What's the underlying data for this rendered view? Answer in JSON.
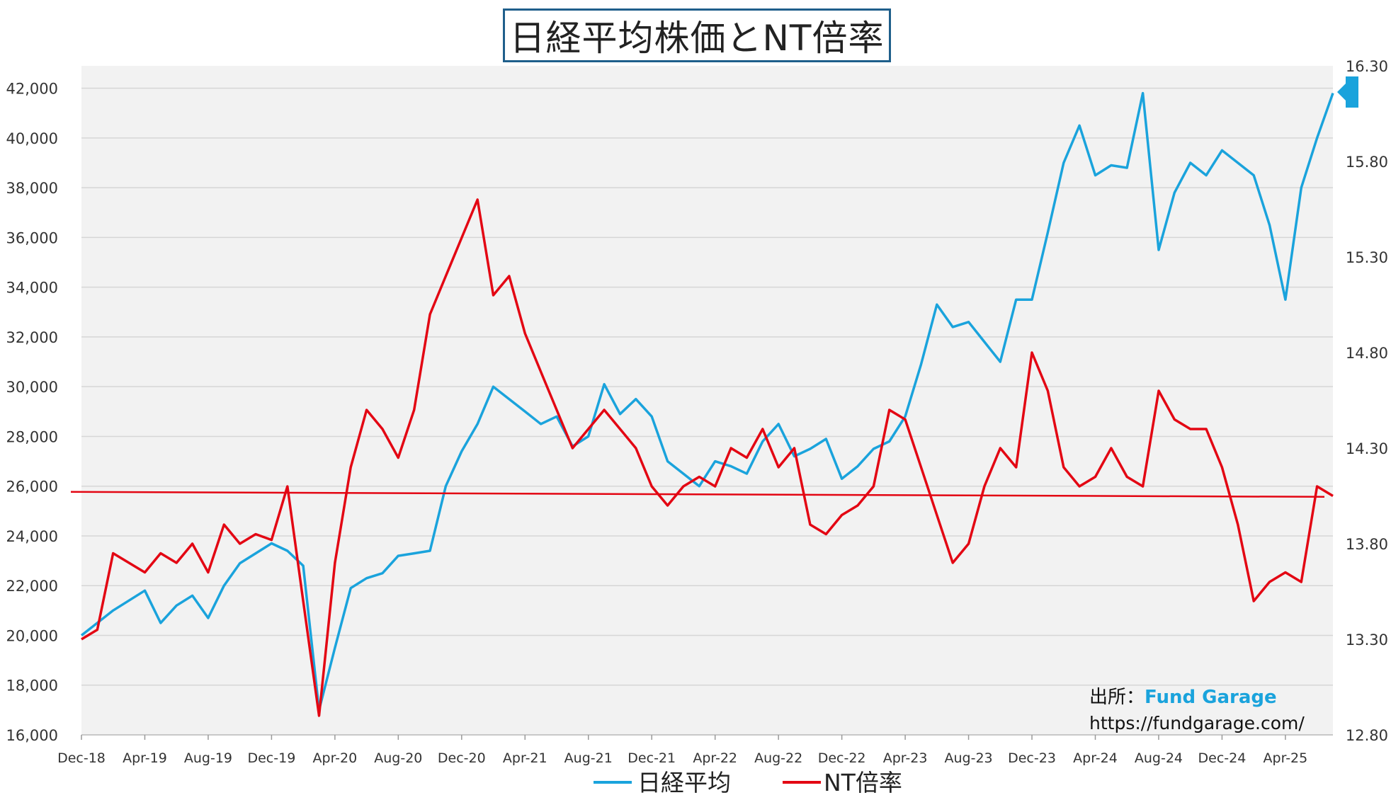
{
  "chart_data": {
    "type": "line",
    "title": "日経平均株価とNT倍率",
    "x_tick_labels": [
      "Dec-18",
      "Apr-19",
      "Aug-19",
      "Dec-19",
      "Apr-20",
      "Aug-20",
      "Dec-20",
      "Apr-21",
      "Aug-21",
      "Dec-21",
      "Apr-22",
      "Aug-22",
      "Dec-22",
      "Apr-23",
      "Aug-23",
      "Dec-23",
      "Apr-24",
      "Aug-24",
      "Dec-24",
      "Apr-25"
    ],
    "x_range": [
      "2018-12",
      "2025-07"
    ],
    "y_left": {
      "ylim": [
        16000,
        42900
      ],
      "tick_values": [
        16000,
        18000,
        20000,
        22000,
        24000,
        26000,
        28000,
        30000,
        32000,
        34000,
        36000,
        38000,
        40000,
        42000
      ],
      "tick_labels": [
        "16,000",
        "18,000",
        "20,000",
        "22,000",
        "24,000",
        "26,000",
        "28,000",
        "30,000",
        "32,000",
        "34,000",
        "36,000",
        "38,000",
        "40,000",
        "42,000"
      ]
    },
    "y_right": {
      "ylim": [
        12.8,
        16.3
      ],
      "tick_values": [
        12.8,
        13.3,
        13.8,
        14.3,
        14.8,
        15.3,
        15.8,
        16.3
      ],
      "tick_labels": [
        "12.80",
        "13.30",
        "13.80",
        "14.30",
        "14.80",
        "15.30",
        "15.80",
        "16.30"
      ]
    },
    "grid": true,
    "legend_position": "bottom",
    "series": [
      {
        "name": "日経平均",
        "axis": "left",
        "color": "#1aa3dc",
        "x": [
          "2018-12",
          "2019-02",
          "2019-04",
          "2019-05",
          "2019-06",
          "2019-07",
          "2019-08",
          "2019-09",
          "2019-10",
          "2019-11",
          "2019-12",
          "2020-01",
          "2020-02",
          "2020-03",
          "2020-04",
          "2020-05",
          "2020-06",
          "2020-07",
          "2020-08",
          "2020-09",
          "2020-10",
          "2020-11",
          "2020-12",
          "2021-01",
          "2021-02",
          "2021-03",
          "2021-04",
          "2021-05",
          "2021-06",
          "2021-07",
          "2021-08",
          "2021-09",
          "2021-10",
          "2021-11",
          "2021-12",
          "2022-01",
          "2022-02",
          "2022-03",
          "2022-04",
          "2022-05",
          "2022-06",
          "2022-07",
          "2022-08",
          "2022-09",
          "2022-10",
          "2022-11",
          "2022-12",
          "2023-01",
          "2023-02",
          "2023-03",
          "2023-04",
          "2023-05",
          "2023-06",
          "2023-07",
          "2023-08",
          "2023-09",
          "2023-10",
          "2023-11",
          "2023-12",
          "2024-01",
          "2024-02",
          "2024-03",
          "2024-04",
          "2024-05",
          "2024-06",
          "2024-07",
          "2024-08",
          "2024-09",
          "2024-10",
          "2024-11",
          "2024-12",
          "2025-01",
          "2025-02",
          "2025-03",
          "2025-04",
          "2025-05",
          "2025-06",
          "2025-07"
        ],
        "values": [
          20000,
          21000,
          21800,
          20500,
          21200,
          21600,
          20700,
          22000,
          22900,
          23300,
          23700,
          23400,
          22800,
          17000,
          19500,
          21900,
          22300,
          22500,
          23200,
          23300,
          23400,
          26000,
          27400,
          28500,
          30000,
          29500,
          29000,
          28500,
          28800,
          27600,
          28000,
          30100,
          28900,
          29500,
          28800,
          27000,
          26500,
          26000,
          27000,
          26800,
          26500,
          27800,
          28500,
          27200,
          27500,
          27900,
          26300,
          26800,
          27500,
          27800,
          28800,
          30900,
          33300,
          32400,
          32600,
          31800,
          31000,
          33500,
          33500,
          36200,
          39000,
          40500,
          38500,
          38900,
          38800,
          41800,
          35500,
          37800,
          39000,
          38500,
          39500,
          39000,
          38500,
          36500,
          33500,
          38000,
          40000,
          41800
        ]
      },
      {
        "name": "NT倍率",
        "axis": "right",
        "color": "#e30613",
        "x": [
          "2018-12",
          "2019-01",
          "2019-02",
          "2019-03",
          "2019-04",
          "2019-05",
          "2019-06",
          "2019-07",
          "2019-08",
          "2019-09",
          "2019-10",
          "2019-11",
          "2019-12",
          "2020-01",
          "2020-02",
          "2020-03",
          "2020-04",
          "2020-05",
          "2020-06",
          "2020-07",
          "2020-08",
          "2020-09",
          "2020-10",
          "2020-11",
          "2020-12",
          "2021-01",
          "2021-02",
          "2021-03",
          "2021-04",
          "2021-05",
          "2021-06",
          "2021-07",
          "2021-08",
          "2021-09",
          "2021-10",
          "2021-11",
          "2021-12",
          "2022-01",
          "2022-02",
          "2022-03",
          "2022-04",
          "2022-05",
          "2022-06",
          "2022-07",
          "2022-08",
          "2022-09",
          "2022-10",
          "2022-11",
          "2022-12",
          "2023-01",
          "2023-02",
          "2023-03",
          "2023-04",
          "2023-05",
          "2023-06",
          "2023-07",
          "2023-08",
          "2023-09",
          "2023-10",
          "2023-11",
          "2023-12",
          "2024-01",
          "2024-02",
          "2024-03",
          "2024-04",
          "2024-05",
          "2024-06",
          "2024-07",
          "2024-08",
          "2024-09",
          "2024-10",
          "2024-11",
          "2024-12",
          "2025-01",
          "2025-02",
          "2025-03",
          "2025-04",
          "2025-05",
          "2025-06",
          "2025-07"
        ],
        "values": [
          13.3,
          13.35,
          13.75,
          13.7,
          13.65,
          13.75,
          13.7,
          13.8,
          13.65,
          13.9,
          13.8,
          13.85,
          13.82,
          14.1,
          13.5,
          12.9,
          13.7,
          14.2,
          14.5,
          14.4,
          14.25,
          14.5,
          15.0,
          15.2,
          15.4,
          15.6,
          15.1,
          15.2,
          14.9,
          14.7,
          14.5,
          14.3,
          14.4,
          14.5,
          14.4,
          14.3,
          14.1,
          14.0,
          14.1,
          14.15,
          14.1,
          14.3,
          14.25,
          14.4,
          14.2,
          14.3,
          13.9,
          13.85,
          13.95,
          14.0,
          14.1,
          14.5,
          14.45,
          14.2,
          13.95,
          13.7,
          13.8,
          14.1,
          14.3,
          14.2,
          14.8,
          14.6,
          14.2,
          14.1,
          14.15,
          14.3,
          14.15,
          14.1,
          14.6,
          14.45,
          14.4,
          14.4,
          14.2,
          13.9,
          13.5,
          13.6,
          13.65,
          13.6,
          14.1,
          14.05
        ]
      }
    ],
    "reference_line": {
      "axis": "right",
      "value": 14.06,
      "color": "#e30613"
    }
  },
  "source": {
    "label": "出所：",
    "name": "Fund Garage",
    "url": "https://fundgarage.com/"
  }
}
